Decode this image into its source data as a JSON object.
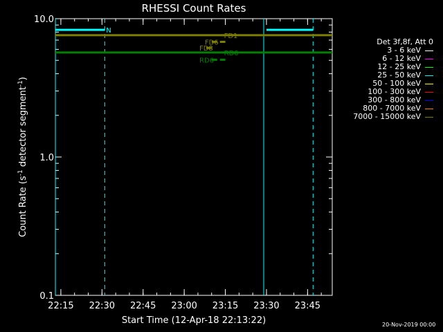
{
  "chart_data": {
    "type": "line",
    "title": "RHESSI Count Rates",
    "xlabel": "Start Time (12-Apr-18 22:13:22)",
    "ylabel_parts": [
      "Count Rate (s",
      "-1",
      " detector segment",
      "-1",
      ")"
    ],
    "yscale": "log",
    "ylim": [
      0.1,
      10.0
    ],
    "xlim": [
      "22:13",
      "23:54"
    ],
    "xticks": [
      "22:15",
      "22:30",
      "22:45",
      "23:00",
      "23:15",
      "23:30",
      "23:45"
    ],
    "yticks": [
      "0.1",
      "1.0",
      "10.0"
    ],
    "series": [
      {
        "color": "#00ffff",
        "segments": [
          {
            "x": [
              "22:13",
              "22:31"
            ],
            "y": [
              8.3,
              8.3
            ]
          },
          {
            "x": [
              "23:30",
              "23:47"
            ],
            "y": [
              8.3,
              8.3
            ]
          }
        ]
      },
      {
        "color": "#808000",
        "segments": [
          {
            "x": [
              "22:13",
              "23:54"
            ],
            "y": [
              7.6,
              7.6
            ]
          }
        ]
      },
      {
        "color": "#008000",
        "segments": [
          {
            "x": [
              "22:13",
              "23:54"
            ],
            "y": [
              5.7,
              5.7
            ]
          }
        ]
      }
    ],
    "vlines_solid": [
      "22:13",
      "23:29"
    ],
    "vlines_dashed": [
      "22:31",
      "23:47"
    ],
    "annotations": [
      {
        "text": "N",
        "x": "22:31",
        "y": 8.3,
        "color": "#00ffff"
      },
      {
        "text": "FD1",
        "x": "23:14",
        "y": 7.6,
        "color": "#808000"
      },
      {
        "text": "FD6",
        "x": "23:07",
        "y": 6.8,
        "color": "#808000"
      },
      {
        "text": "FD8",
        "x": "23:05",
        "y": 6.15,
        "color": "#808000"
      },
      {
        "text": "RD0",
        "x": "23:14",
        "y": 5.7,
        "color": "#008000"
      },
      {
        "text": "RD6",
        "x": "23:05",
        "y": 5.05,
        "color": "#008000"
      }
    ],
    "dashes": [
      {
        "x": [
          "23:10",
          "23:15"
        ],
        "y": 6.8,
        "color": "#808000"
      },
      {
        "x": [
          "23:08",
          "23:10"
        ],
        "y": 6.15,
        "color": "#808000"
      },
      {
        "x": [
          "23:14",
          "23:19"
        ],
        "y": 5.7,
        "color": "#008000"
      },
      {
        "x": [
          "23:10",
          "23:15"
        ],
        "y": 5.05,
        "color": "#008000"
      }
    ],
    "legend": {
      "header": "Det 3f,8f, Att 0",
      "entries": [
        {
          "label": "3 - 6 keV",
          "color": "#ffffff"
        },
        {
          "label": "6 - 12 keV",
          "color": "#ff00ff"
        },
        {
          "label": "12 - 25 keV",
          "color": "#00ff00"
        },
        {
          "label": "25 - 50 keV",
          "color": "#00ffff"
        },
        {
          "label": "50 - 100 keV",
          "color": "#ffff00"
        },
        {
          "label": "100 - 300 keV",
          "color": "#ff0000"
        },
        {
          "label": "300 - 800 keV",
          "color": "#0000ff"
        },
        {
          "label": "800 - 7000 keV",
          "color": "#ff8000"
        },
        {
          "label": "7000 - 15000 keV",
          "color": "#808000"
        }
      ]
    }
  },
  "footer": {
    "timestamp": "20-Nov-2019 00:00"
  }
}
